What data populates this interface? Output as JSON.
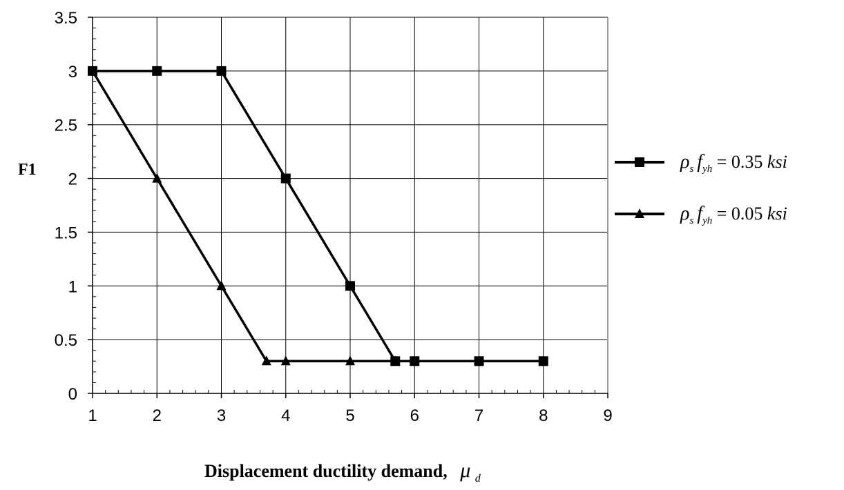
{
  "chart_data": {
    "type": "line",
    "xlabel": "Displacement ductility demand,",
    "xlabel_symbol": "μ",
    "xlabel_symbol_sub": "d",
    "ylabel": "F1",
    "xlim": [
      1,
      9
    ],
    "ylim": [
      0,
      3.5
    ],
    "x_ticks": [
      "1",
      "2",
      "3",
      "4",
      "5",
      "6",
      "7",
      "8",
      "9"
    ],
    "y_ticks": [
      "0",
      "0.5",
      "1",
      "1.5",
      "2",
      "2.5",
      "3",
      "3.5"
    ],
    "grid": true,
    "legend_position": "right",
    "series": [
      {
        "name": "ρs fyh = 0.35 ksi",
        "marker": "square",
        "color": "#000000",
        "points": [
          [
            1,
            3
          ],
          [
            2,
            3
          ],
          [
            3,
            3
          ],
          [
            4,
            2
          ],
          [
            5,
            1
          ],
          [
            5.7,
            0.3
          ],
          [
            6,
            0.3
          ],
          [
            7,
            0.3
          ],
          [
            8,
            0.3
          ]
        ]
      },
      {
        "name": "ρs fyh = 0.05 ksi",
        "marker": "triangle",
        "color": "#000000",
        "points": [
          [
            1,
            3
          ],
          [
            2,
            2
          ],
          [
            3,
            1
          ],
          [
            3.7,
            0.3
          ],
          [
            4,
            0.3
          ],
          [
            5,
            0.3
          ],
          [
            5.7,
            0.3
          ],
          [
            6,
            0.3
          ],
          [
            7,
            0.3
          ],
          [
            8,
            0.3
          ]
        ]
      }
    ],
    "legend": [
      {
        "rho": "ρ",
        "rho_sub": "s",
        "f": "f",
        "f_sub": "yh",
        "eq": " = 0.35 ",
        "unit": "ksi"
      },
      {
        "rho": "ρ",
        "rho_sub": "s",
        "f": "f",
        "f_sub": "yh",
        "eq": " = 0.05 ",
        "unit": "ksi"
      }
    ]
  }
}
